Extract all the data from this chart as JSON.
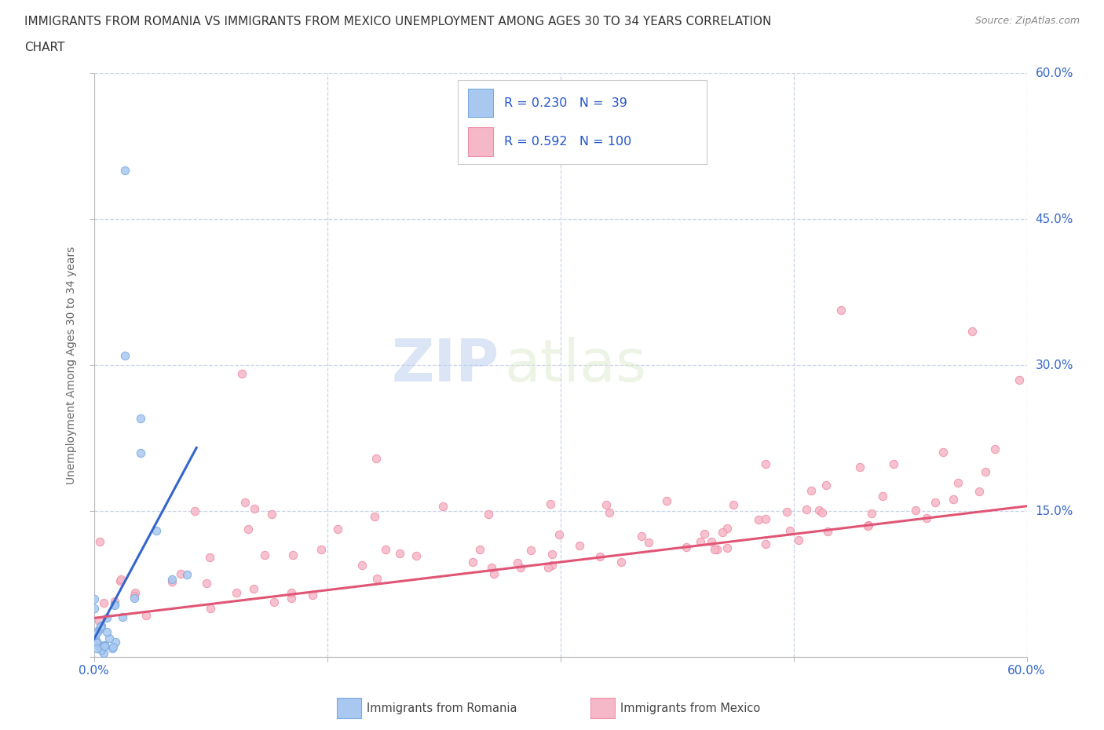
{
  "title_line1": "IMMIGRANTS FROM ROMANIA VS IMMIGRANTS FROM MEXICO UNEMPLOYMENT AMONG AGES 30 TO 34 YEARS CORRELATION",
  "title_line2": "CHART",
  "source_text": "Source: ZipAtlas.com",
  "watermark_zip": "ZIP",
  "watermark_atlas": "atlas",
  "ylabel": "Unemployment Among Ages 30 to 34 years",
  "xlim": [
    0.0,
    0.6
  ],
  "ylim": [
    0.0,
    0.6
  ],
  "romania_color": "#a8c8f0",
  "mexico_color": "#f5b8c8",
  "romania_edge": "#7aaae0",
  "mexico_edge": "#f090a8",
  "legend_R_color": "#2255cc",
  "romania_trend_color": "#3366cc",
  "mexico_trend_color": "#e05575",
  "grid_color": "#c8d4e8",
  "right_tick_color": "#3366cc",
  "background_color": "#ffffff",
  "figsize": [
    14.06,
    9.3
  ]
}
